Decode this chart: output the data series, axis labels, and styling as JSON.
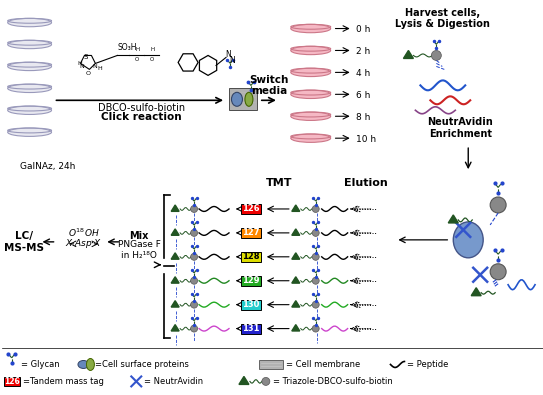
{
  "bg_color": "#ffffff",
  "fig_width": 5.43,
  "fig_height": 3.95,
  "dpi": 100,
  "top": {
    "galnaz": "GalNAz, 24h",
    "dbco": "DBCO-sulfo-biotin",
    "click": "Click reaction",
    "switch": "Switch\nmedia",
    "harvest": "Harvest cells,\nLysis & Digestion",
    "neutavidin": "NeutrAvidin\nEnrichment"
  },
  "time_points": [
    "0 h",
    "2 h",
    "4 h",
    "6 h",
    "8 h",
    "10 h"
  ],
  "bottom": {
    "lc_ms": "LC/\nMS-MS",
    "mix": "Mix",
    "pngase": "PNGase F\nin H₂¹⁸O",
    "tmt": "TMT",
    "elution": "Elution"
  },
  "tmt_tags": [
    {
      "label": "126",
      "color": "#ee0000",
      "peptide_color": "#000000"
    },
    {
      "label": "127",
      "color": "#ff8800",
      "peptide_color": "#000000"
    },
    {
      "label": "128",
      "color": "#dddd00",
      "peptide_color": "#000000"
    },
    {
      "label": "129",
      "color": "#22aa22",
      "peptide_color": "#228822"
    },
    {
      "label": "130",
      "color": "#22cccc",
      "peptide_color": "#22aa22"
    },
    {
      "label": "131",
      "color": "#2222cc",
      "peptide_color": "#cc44cc"
    }
  ],
  "colors": {
    "dish_fill_gray": "#e8e8f0",
    "dish_edge_gray": "#9999bb",
    "dish_fill_pink": "#f5b8c4",
    "dish_edge_pink": "#cc7788",
    "arrow_black": "#111111",
    "glycan_dot_blue": "#2244cc",
    "glycan_line_green": "#225522",
    "bead_gray": "#888888",
    "bead_edge": "#555555",
    "membrane_gray": "#999999",
    "neutavidin_blue": "#3355cc",
    "triazole_green": "#225522",
    "cell_blue": "#6688bb",
    "cell_green": "#88aa44",
    "peptide_blue": "#2255cc",
    "peptide_red": "#cc2222",
    "peptide_purple": "#884488",
    "big_bead_blue": "#7799cc"
  }
}
